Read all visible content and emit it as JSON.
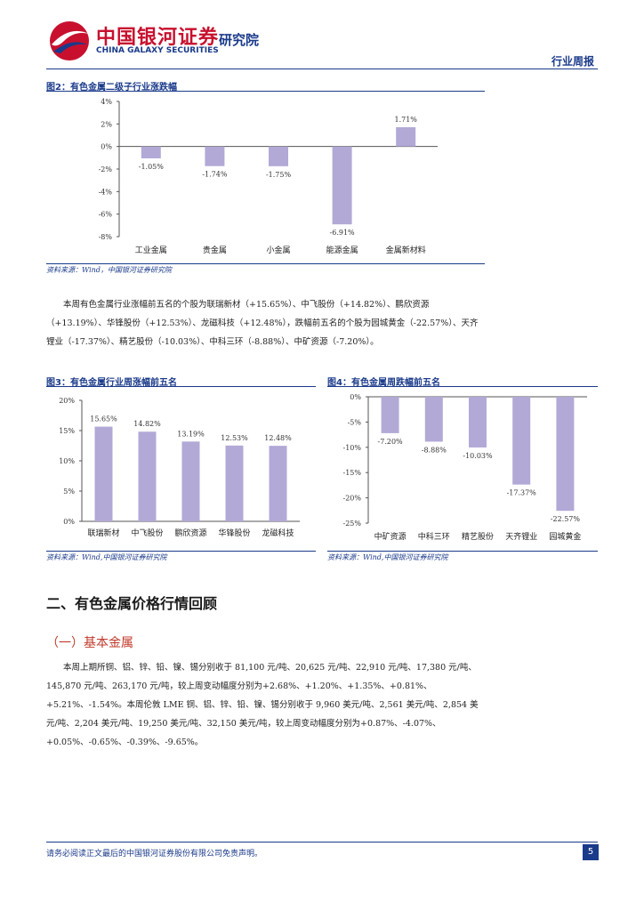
{
  "header": {
    "brand_cn": "中国银河证券",
    "brand_en": "CHINA GALAXY SECURITIES",
    "institute": "研究院",
    "report_type": "行业周报"
  },
  "fig2": {
    "title": "图2：有色金属二级子行业涨跌幅",
    "source": "资料来源：Wind，中国银河证券研究院"
  },
  "fig3": {
    "title": "图3：有色金属行业周涨幅前五名",
    "source": "资料来源：Wind,中国银河证券研究院"
  },
  "fig4": {
    "title": "图4：有色金属周跌幅前五名",
    "source": "资料来源：Wind,中国银河证券研究院"
  },
  "para1": "本周有色金属行业涨幅前五名的个股为联瑞新材（+15.65%）、中飞股份（+14.82%）、鹏欣资源（+13.19%）、华锋股份（+12.53%）、龙磁科技（+12.48%），跌幅前五名的个股为园城黄金（-22.57%）、天齐锂业（-17.37%）、精艺股份（-10.03%）、中科三环（-8.88%）、中矿资源（-7.20%）。",
  "section_title": "二、有色金属价格行情回顾",
  "subsection_title": "（一）基本金属",
  "para2": "本周上期所铜、铝、锌、铅、镍、锡分别收于 81,100 元/吨、20,625 元/吨、22,910 元/吨、17,380 元/吨、145,870 元/吨、263,170 元/吨，较上周变动幅度分别为+2.68%、+1.20%、+1.35%、+0.81%、+5.21%、-1.54%。本周伦敦 LME 铜、铝、锌、铅、镍、锡分别收于 9,960 美元/吨、2,561 美元/吨、2,854 美元/吨、2,204 美元/吨、19,250 美元/吨、32,150 美元/吨，较上周变动幅度分别为+0.87%、-4.07%、+0.05%、-0.65%、-0.39%、-9.65%。",
  "footer": {
    "disclaimer": "请务必阅读正文最后的中国银河证券股份有限公司免责声明。",
    "page": "5"
  },
  "colors": {
    "bar": "#b3a9d6",
    "brand_red": "#c8102e",
    "brand_navy": "#1a3a8a"
  },
  "chart_data": [
    {
      "type": "bar",
      "title": "图2：有色金属二级子行业涨跌幅",
      "categories": [
        "工业金属",
        "贵金属",
        "小金属",
        "能源金属",
        "金属新材料"
      ],
      "values": [
        -1.05,
        -1.74,
        -1.75,
        -6.91,
        1.71
      ],
      "data_labels": [
        "-1.05%",
        "-1.74%",
        "-1.75%",
        "-6.91%",
        "1.71%"
      ],
      "yticks": [
        "4%",
        "2%",
        "0%",
        "-2%",
        "-4%",
        "-6%",
        "-8%"
      ],
      "ylim": [
        -8,
        4
      ],
      "grid": false
    },
    {
      "type": "bar",
      "title": "图3：有色金属行业周涨幅前五名",
      "categories": [
        "联瑞新材",
        "中飞股份",
        "鹏欣资源",
        "华锋股份",
        "龙磁科技"
      ],
      "values": [
        15.65,
        14.82,
        13.19,
        12.53,
        12.48
      ],
      "data_labels": [
        "15.65%",
        "14.82%",
        "13.19%",
        "12.53%",
        "12.48%"
      ],
      "yticks": [
        "20%",
        "15%",
        "10%",
        "5%",
        "0%"
      ],
      "ylim": [
        0,
        20
      ],
      "grid": false
    },
    {
      "type": "bar",
      "title": "图4：有色金属周跌幅前五名",
      "categories": [
        "中矿资源",
        "中科三环",
        "精艺股份",
        "天齐锂业",
        "园城黄金"
      ],
      "values": [
        -7.2,
        -8.88,
        -10.03,
        -17.37,
        -22.57
      ],
      "data_labels": [
        "-7.20%",
        "-8.88%",
        "-10.03%",
        "-17.37%",
        "-22.57%"
      ],
      "yticks": [
        "0%",
        "-5%",
        "-10%",
        "-15%",
        "-20%",
        "-25%"
      ],
      "ylim": [
        -25,
        0
      ],
      "grid": false
    }
  ]
}
